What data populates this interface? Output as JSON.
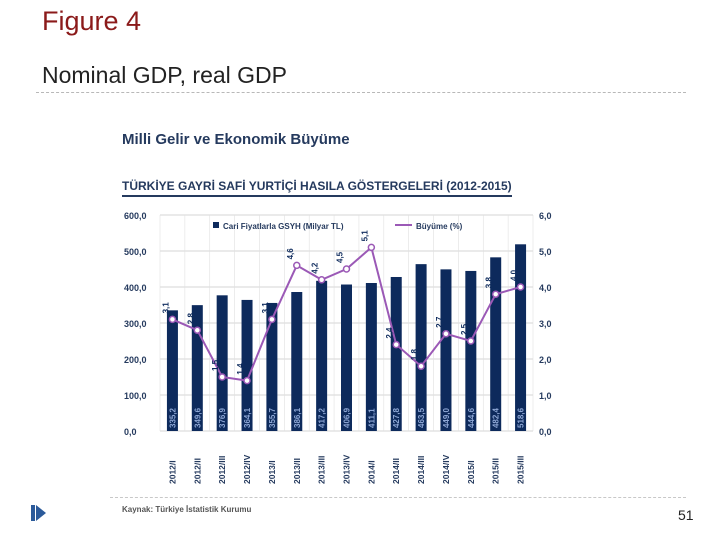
{
  "slide": {
    "title": "Figure 4",
    "subtitle": "Nominal GDP, real GDP",
    "page_number": "51"
  },
  "chart_heading": "Milli Gelir ve Ekonomik Büyüme",
  "chart_subheading": "TÜRKİYE GAYRİ SAFİ YURTİÇİ HASILA GÖSTERGELERİ (2012-2015)",
  "source": "Kaynak: Türkiye İstatistik Kurumu",
  "colors": {
    "bar": "#0d2a5c",
    "line": "#9b59b6",
    "bar_label": "#8fa8d6",
    "text": "#253a5e"
  },
  "chart_data": {
    "type": "bar",
    "categories": [
      "2012/I",
      "2012/II",
      "2012/III",
      "2012/IV",
      "2013/I",
      "2013/II",
      "2013/III",
      "2013/IV",
      "2014/I",
      "2014/II",
      "2014/III",
      "2014/IV",
      "2015/I",
      "2015/II",
      "2015/III"
    ],
    "series": [
      {
        "name": "Cari Fiyatlarla GSYH (Milyar TL)",
        "type": "bar",
        "axis": "left",
        "values": [
          335.2,
          349.6,
          376.9,
          364.1,
          355.7,
          386.1,
          417.2,
          406.9,
          411.1,
          427.8,
          463.5,
          449.0,
          444.6,
          482.4,
          518.6
        ],
        "labels": [
          "335,2",
          "349,6",
          "376,9",
          "364,1",
          "355,7",
          "386,1",
          "417,2",
          "406,9",
          "411,1",
          "427,8",
          "463,5",
          "449,0",
          "444,6",
          "482,4",
          "518,6"
        ]
      },
      {
        "name": "Büyüme (%)",
        "type": "line",
        "axis": "right",
        "values": [
          3.1,
          2.8,
          1.5,
          1.4,
          3.1,
          4.6,
          4.2,
          4.5,
          5.1,
          2.4,
          1.8,
          2.7,
          2.5,
          3.8,
          4.0
        ],
        "labels": [
          "3,1",
          "2,8",
          "1,5",
          "1,4",
          "3,1",
          "4,6",
          "4,2",
          "4,5",
          "5,1",
          "2,4",
          "1,8",
          "2,7",
          "2,5",
          "3,8",
          "4,0"
        ]
      }
    ],
    "left_axis": {
      "ylim": [
        0,
        600
      ],
      "ticks": [
        "0,0",
        "100,0",
        "200,0",
        "300,0",
        "400,0",
        "500,0",
        "600,0"
      ]
    },
    "right_axis": {
      "ylim": [
        0,
        6
      ],
      "ticks": [
        "0,0",
        "1,0",
        "2,0",
        "3,0",
        "4,0",
        "5,0",
        "6,0"
      ]
    },
    "legend_position": "top",
    "grid": true
  }
}
